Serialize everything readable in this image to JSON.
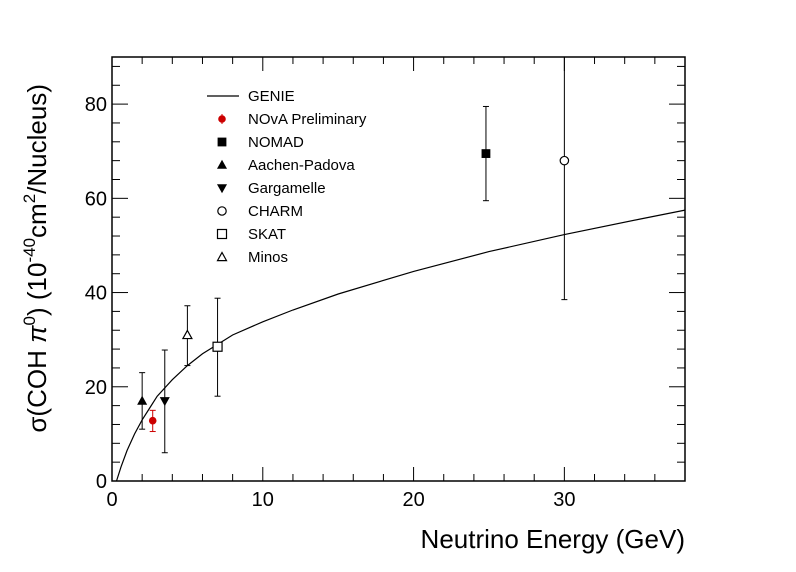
{
  "chart_data": {
    "type": "scatter",
    "xlabel": "Neutrino Energy (GeV)",
    "ylabel": {
      "prefix": "σ(COH ",
      "pi": "π",
      "zero": "0",
      "mid": ") (10",
      "exp": "-40",
      "cm": "cm",
      "two": "2",
      "suffix": "/Nucleus)"
    },
    "xlim": [
      0,
      38
    ],
    "ylim": [
      0,
      90
    ],
    "xticks": [
      0,
      10,
      20,
      30
    ],
    "yticks": [
      0,
      20,
      40,
      60,
      80
    ],
    "xtick_labels": [
      "0",
      "10",
      "20",
      "30"
    ],
    "ytick_labels": [
      "0",
      "20",
      "40",
      "60",
      "80"
    ],
    "legend_position": "top-left",
    "curve": {
      "name": "GENIE",
      "x": [
        0.3,
        0.6,
        1,
        1.5,
        2,
        2.5,
        3,
        4,
        5,
        6,
        7,
        8,
        10,
        12,
        15,
        20,
        25,
        30,
        35,
        38
      ],
      "y": [
        0,
        3,
        6.5,
        10,
        13,
        15.5,
        18,
        21.5,
        24.5,
        27,
        29,
        31,
        33.8,
        36.3,
        39.7,
        44.5,
        48.7,
        52.3,
        55.6,
        57.5
      ]
    },
    "series": [
      {
        "name": "NOvA Preliminary",
        "marker": "circle-filled",
        "color": "#cc0000",
        "points": [
          {
            "x": 2.7,
            "y": 12.8,
            "lo": 10.5,
            "hi": 15.0
          }
        ]
      },
      {
        "name": "NOMAD",
        "marker": "square-filled",
        "color": "#000000",
        "points": [
          {
            "x": 24.8,
            "y": 69.5,
            "lo": 59.5,
            "hi": 79.5
          }
        ]
      },
      {
        "name": "Aachen-Padova",
        "marker": "triangle-up-filled",
        "color": "#000000",
        "points": [
          {
            "x": 2.0,
            "y": 17.0,
            "lo": 11.0,
            "hi": 23.0
          }
        ]
      },
      {
        "name": "Gargamelle",
        "marker": "triangle-down-filled",
        "color": "#000000",
        "points": [
          {
            "x": 3.5,
            "y": 17.0,
            "lo": 6.0,
            "hi": 27.8
          }
        ]
      },
      {
        "name": "CHARM",
        "marker": "circle-open",
        "color": "#000000",
        "points": [
          {
            "x": 30.0,
            "y": 68.0,
            "lo": 38.5,
            "hi": 90.0
          }
        ]
      },
      {
        "name": "SKAT",
        "marker": "square-open",
        "color": "#000000",
        "points": [
          {
            "x": 7.0,
            "y": 28.5,
            "lo": 18.0,
            "hi": 38.8
          }
        ]
      },
      {
        "name": "Minos",
        "marker": "triangle-up-open",
        "color": "#000000",
        "points": [
          {
            "x": 5.0,
            "y": 31.0,
            "lo": 24.5,
            "hi": 37.2
          }
        ]
      }
    ]
  }
}
